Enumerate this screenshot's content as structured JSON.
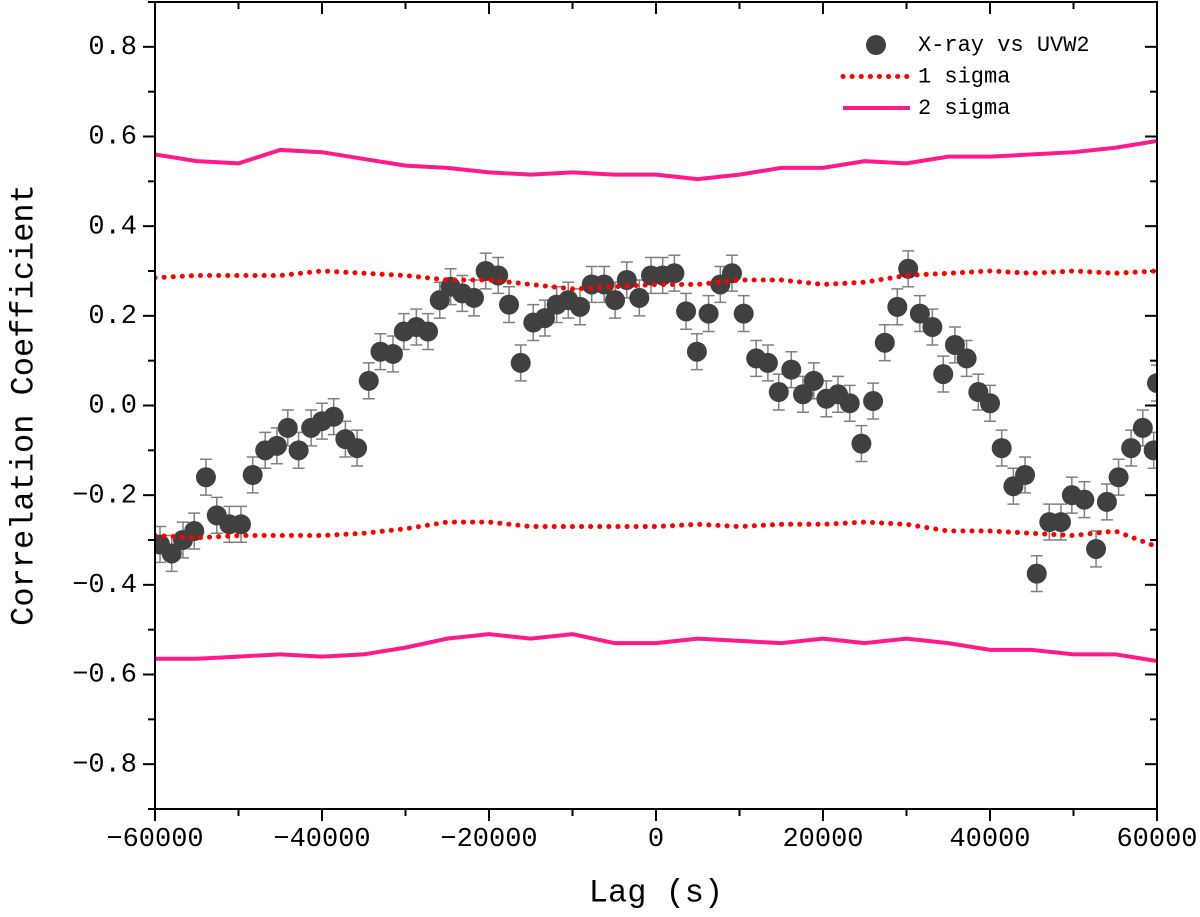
{
  "chart_data": {
    "type": "scatter",
    "xlabel": "Lag (s)",
    "ylabel": "Correlation Coefficient",
    "xlim": [
      -60000,
      60000
    ],
    "ylim": [
      -0.9,
      0.9
    ],
    "xticks": [
      {
        "value": -60000,
        "label": "−60000"
      },
      {
        "value": -40000,
        "label": "−40000"
      },
      {
        "value": -20000,
        "label": "−20000"
      },
      0,
      20000,
      40000,
      60000
    ],
    "xminorticks": [
      -50000,
      -30000,
      -10000,
      10000,
      30000,
      50000
    ],
    "yticks": [
      {
        "value": -0.8,
        "label": "−0.8"
      },
      {
        "value": -0.6,
        "label": "−0.6"
      },
      {
        "value": -0.4,
        "label": "−0.4"
      },
      {
        "value": -0.2,
        "label": "−0.2"
      },
      {
        "value": 0,
        "label": "0.0"
      },
      0.2,
      0.4,
      0.6,
      0.8
    ],
    "yminorticks": [
      -0.9,
      -0.7,
      -0.5,
      -0.3,
      -0.1,
      0.1,
      0.3,
      0.5,
      0.7,
      0.9
    ],
    "legend": "upper right",
    "series": [
      {
        "name": "X-ray vs UVW2",
        "color": "#404040",
        "error_color": "#808080",
        "x": [
          -59400,
          -58000,
          -56650,
          -55300,
          -53900,
          -52600,
          -51100,
          -49700,
          -48300,
          -46800,
          -45400,
          -44100,
          -42800,
          -41300,
          -40000,
          -38600,
          -37200,
          -35800,
          -34400,
          -33000,
          -31500,
          -30200,
          -28700,
          -27300,
          -25900,
          -24600,
          -23200,
          -21800,
          -20400,
          -18900,
          -17600,
          -16200,
          -14700,
          -13300,
          -11900,
          -10500,
          -9100,
          -7700,
          -6200,
          -4900,
          -3500,
          -2000,
          -600,
          800,
          2200,
          3600,
          4900,
          6300,
          7700,
          9100,
          10500,
          12000,
          13400,
          14700,
          16200,
          17600,
          18900,
          20400,
          21800,
          23200,
          24600,
          26000,
          27400,
          28900,
          30200,
          31600,
          33100,
          34400,
          35800,
          37200,
          38600,
          40000,
          41400,
          42800,
          44200,
          45600,
          47100,
          48500,
          49800,
          51300,
          52700,
          54000,
          55400,
          56900,
          58300,
          59600,
          60000
        ],
        "values": [
          -0.31,
          -0.33,
          -0.3,
          -0.28,
          -0.16,
          -0.245,
          -0.265,
          -0.265,
          -0.155,
          -0.1,
          -0.09,
          -0.05,
          -0.1,
          -0.05,
          -0.035,
          -0.025,
          -0.075,
          -0.095,
          0.055,
          0.12,
          0.115,
          0.165,
          0.175,
          0.165,
          0.235,
          0.265,
          0.25,
          0.24,
          0.3,
          0.29,
          0.225,
          0.095,
          0.185,
          0.195,
          0.225,
          0.235,
          0.22,
          0.27,
          0.27,
          0.235,
          0.28,
          0.24,
          0.29,
          0.29,
          0.295,
          0.21,
          0.12,
          0.205,
          0.27,
          0.295,
          0.205,
          0.105,
          0.095,
          0.03,
          0.08,
          0.025,
          0.055,
          0.015,
          0.025,
          0.005,
          -0.085,
          0.01,
          0.14,
          0.22,
          0.305,
          0.205,
          0.175,
          0.07,
          0.135,
          0.105,
          0.03,
          0.005,
          -0.095,
          -0.18,
          -0.155,
          -0.375,
          -0.26,
          -0.26,
          -0.2,
          -0.21,
          -0.32,
          -0.215,
          -0.16,
          -0.095,
          -0.05,
          -0.1,
          0.05
        ],
        "errors": [
          0.04,
          0.04,
          0.04,
          0.04,
          0.04,
          0.04,
          0.04,
          0.04,
          0.04,
          0.04,
          0.04,
          0.04,
          0.04,
          0.04,
          0.04,
          0.04,
          0.04,
          0.04,
          0.04,
          0.04,
          0.04,
          0.04,
          0.04,
          0.04,
          0.04,
          0.04,
          0.04,
          0.04,
          0.04,
          0.04,
          0.04,
          0.04,
          0.04,
          0.04,
          0.04,
          0.04,
          0.04,
          0.04,
          0.04,
          0.04,
          0.04,
          0.04,
          0.04,
          0.04,
          0.04,
          0.04,
          0.04,
          0.04,
          0.04,
          0.04,
          0.04,
          0.04,
          0.04,
          0.04,
          0.04,
          0.04,
          0.04,
          0.04,
          0.04,
          0.04,
          0.04,
          0.04,
          0.04,
          0.04,
          0.04,
          0.04,
          0.04,
          0.04,
          0.04,
          0.04,
          0.04,
          0.04,
          0.04,
          0.04,
          0.04,
          0.04,
          0.04,
          0.04,
          0.04,
          0.04,
          0.04,
          0.04,
          0.04,
          0.04,
          0.04,
          0.04,
          0.04
        ]
      },
      {
        "name": "1 sigma",
        "color": "#ff0000",
        "style": "dotted",
        "x": [
          -60000,
          -55000,
          -50000,
          -45000,
          -40000,
          -35000,
          -30000,
          -25000,
          -20000,
          -15000,
          -10000,
          -5000,
          0,
          5000,
          10000,
          15000,
          20000,
          25000,
          30000,
          35000,
          40000,
          45000,
          50000,
          55000,
          60000
        ],
        "values": [
          0.285,
          0.29,
          0.29,
          0.29,
          0.3,
          0.295,
          0.29,
          0.28,
          0.28,
          0.27,
          0.26,
          0.265,
          0.27,
          0.27,
          0.28,
          0.28,
          0.27,
          0.275,
          0.29,
          0.295,
          0.3,
          0.295,
          0.3,
          0.295,
          0.3
        ],
        "lower": [
          -0.29,
          -0.295,
          -0.29,
          -0.29,
          -0.29,
          -0.285,
          -0.275,
          -0.26,
          -0.26,
          -0.27,
          -0.27,
          -0.27,
          -0.27,
          -0.265,
          -0.27,
          -0.265,
          -0.265,
          -0.26,
          -0.265,
          -0.28,
          -0.28,
          -0.285,
          -0.29,
          -0.28,
          -0.315
        ]
      },
      {
        "name": "2 sigma",
        "color": "#ff1a8c",
        "style": "solid",
        "x": [
          -60000,
          -55000,
          -50000,
          -45000,
          -40000,
          -35000,
          -30000,
          -25000,
          -20000,
          -15000,
          -10000,
          -5000,
          0,
          5000,
          10000,
          15000,
          20000,
          25000,
          30000,
          35000,
          40000,
          45000,
          50000,
          55000,
          60000
        ],
        "values": [
          0.56,
          0.545,
          0.54,
          0.57,
          0.565,
          0.55,
          0.535,
          0.53,
          0.52,
          0.515,
          0.52,
          0.515,
          0.515,
          0.505,
          0.515,
          0.53,
          0.53,
          0.545,
          0.54,
          0.555,
          0.555,
          0.56,
          0.565,
          0.575,
          0.59
        ],
        "lower": [
          -0.565,
          -0.565,
          -0.56,
          -0.555,
          -0.56,
          -0.555,
          -0.54,
          -0.52,
          -0.51,
          -0.52,
          -0.51,
          -0.53,
          -0.53,
          -0.52,
          -0.525,
          -0.53,
          -0.52,
          -0.53,
          -0.52,
          -0.53,
          -0.545,
          -0.545,
          -0.555,
          -0.555,
          -0.57
        ]
      }
    ]
  }
}
